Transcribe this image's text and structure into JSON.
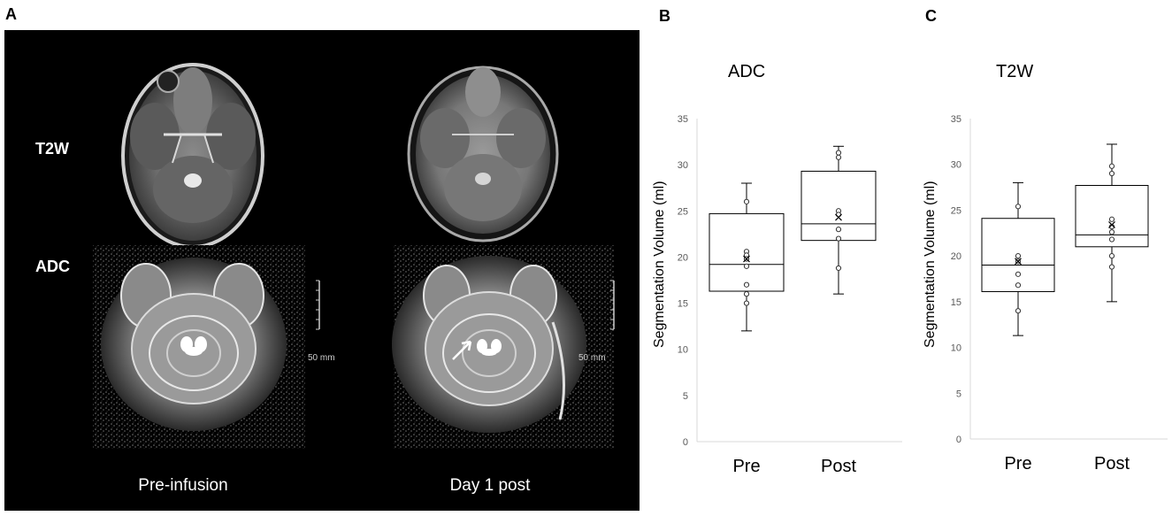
{
  "panels": {
    "a_label": "A",
    "b_label": "B",
    "c_label": "C"
  },
  "mri": {
    "row_labels": [
      "T2W",
      "ADC"
    ],
    "col_labels": [
      "Pre-infusion",
      "Day 1 post"
    ],
    "scale_bar_label": "50 mm"
  },
  "chart_data": [
    {
      "type": "box",
      "title": "ADC",
      "xlabel": "",
      "ylabel": "Segmentation Volume (ml)",
      "ylim": [
        0,
        35
      ],
      "yticks": [
        0,
        5,
        10,
        15,
        20,
        25,
        30,
        35
      ],
      "categories": [
        "Pre",
        "Post"
      ],
      "boxes": [
        {
          "category": "Pre",
          "min": 12,
          "q1": 16.3,
          "median": 19.2,
          "q3": 24.7,
          "max": 28,
          "mean": 19.8,
          "points": [
            26.0,
            20.6,
            20.2,
            19.8,
            19.0,
            17.0,
            16.0,
            15.0
          ]
        },
        {
          "category": "Post",
          "min": 16,
          "q1": 21.8,
          "median": 23.6,
          "q3": 29.3,
          "max": 32,
          "mean": 24.3,
          "points": [
            31.3,
            30.8,
            25.0,
            24.6,
            23.0,
            22.0,
            18.8
          ]
        }
      ]
    },
    {
      "type": "box",
      "title": "T2W",
      "xlabel": "",
      "ylabel": "Segmentation Volume (ml)",
      "ylim": [
        0,
        35
      ],
      "yticks": [
        0,
        5,
        10,
        15,
        20,
        25,
        30,
        35
      ],
      "categories": [
        "Pre",
        "Post"
      ],
      "boxes": [
        {
          "category": "Pre",
          "min": 11.3,
          "q1": 16.1,
          "median": 19.0,
          "q3": 24.1,
          "max": 28,
          "mean": 19.4,
          "points": [
            25.4,
            20.0,
            19.4,
            18.0,
            16.8,
            14.0
          ]
        },
        {
          "category": "Post",
          "min": 15,
          "q1": 21.0,
          "median": 22.3,
          "q3": 27.7,
          "max": 32.2,
          "mean": 23.4,
          "points": [
            29.8,
            29.0,
            24.0,
            23.2,
            22.6,
            21.8,
            20.0,
            18.8
          ]
        }
      ]
    }
  ]
}
